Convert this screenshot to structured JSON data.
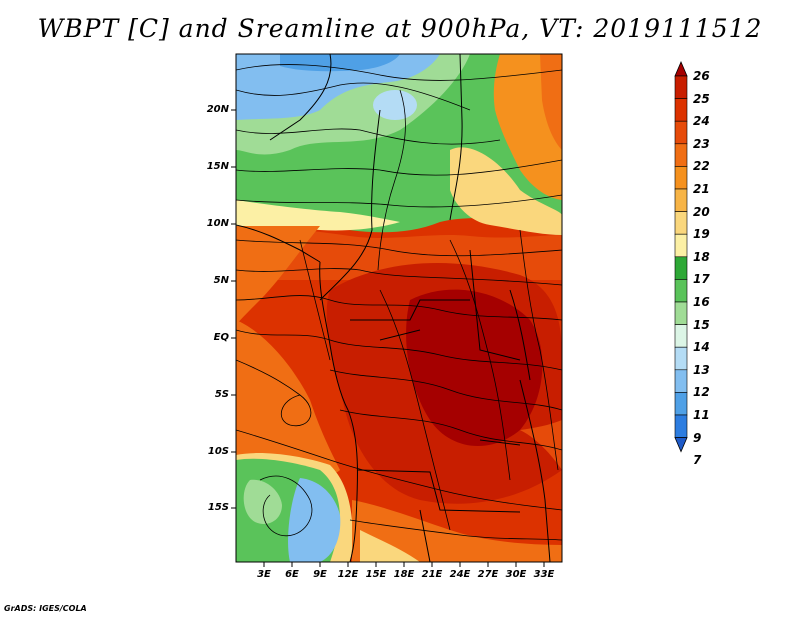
{
  "title": "WBPT [C] and Sreamline at 900hPa, VT: 2019111512",
  "footer": "GrADS: IGES/COLA",
  "map": {
    "variable": "Wet-bulb potential temperature",
    "units": "C",
    "level": "900hPa",
    "valid_time": "2019111512",
    "latitude_labels": [
      "20N",
      "15N",
      "10N",
      "5N",
      "EQ",
      "5S",
      "10S",
      "15S"
    ],
    "longitude_labels": [
      "3E",
      "6E",
      "9E",
      "12E",
      "15E",
      "18E",
      "21E",
      "24E",
      "27E",
      "30E",
      "33E"
    ]
  },
  "colorbar": {
    "labels": [
      "26",
      "25",
      "24",
      "23",
      "22",
      "21",
      "20",
      "19",
      "18",
      "17",
      "16",
      "15",
      "14",
      "13",
      "12",
      "11",
      "9",
      "7"
    ],
    "colors": [
      "#a50000",
      "#c81e00",
      "#dc3200",
      "#e64b0a",
      "#f06e14",
      "#f5911e",
      "#f7b446",
      "#fad77d",
      "#fcf0a5",
      "#2ea836",
      "#5ac35a",
      "#a0dc96",
      "#dcf5e6",
      "#b4dcf5",
      "#82bef0",
      "#4fa0e6",
      "#2d7de0",
      "#1e5ac8"
    ]
  }
}
